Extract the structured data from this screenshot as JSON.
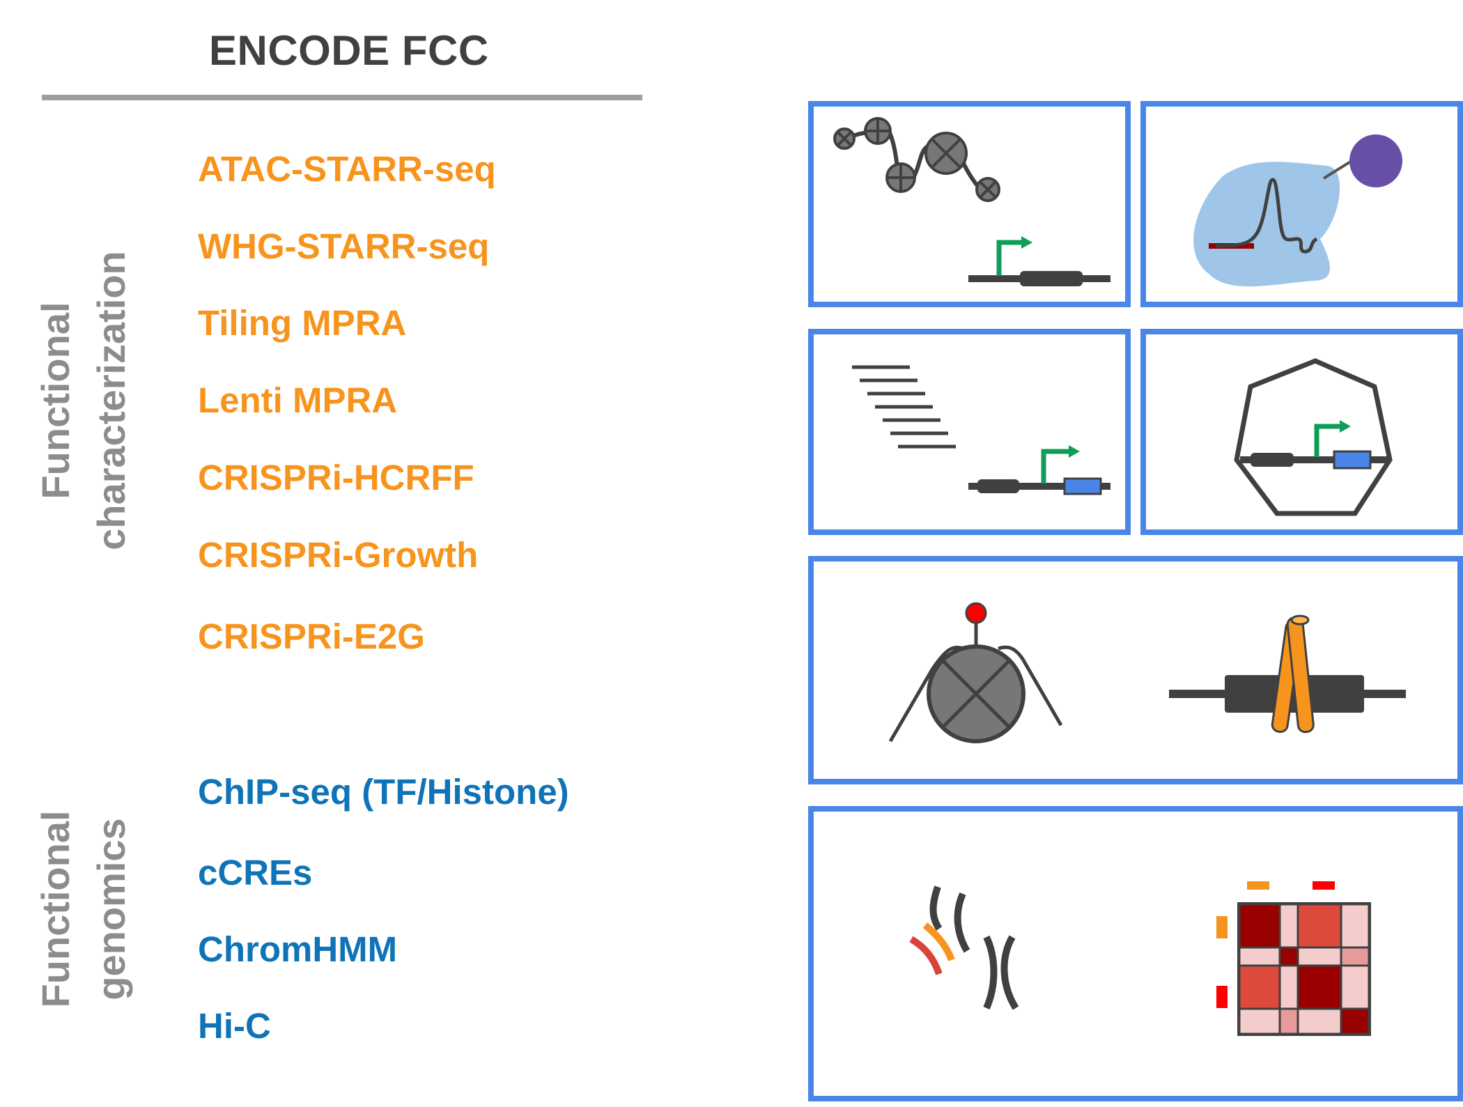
{
  "header": {
    "title": "ENCODE FCC"
  },
  "functional_characterization": {
    "label_line1": "Functional",
    "label_line2": "characterization",
    "color": "#F7941D",
    "assays": [
      "ATAC-STARR-seq",
      "WHG-STARR-seq",
      "Tiling MPRA",
      "Lenti MPRA",
      "CRISPRi-HCRFF",
      "CRISPRi-Growth",
      "CRISPRi-E2G"
    ]
  },
  "functional_genomics": {
    "label_line1": "Functional",
    "label_line2": "genomics",
    "color": "#0F73B8",
    "assays": [
      "ChIP-seq (TF/Histone)",
      "cCREs",
      "ChromHMM",
      "Hi-C"
    ]
  },
  "colors": {
    "panel_border": "#4A86E8",
    "ink": "#404040",
    "green_arrow": "#0F9D58",
    "blue_box": "#4A86E8",
    "purple": "#674EA7",
    "light_blue": "#9FC5E8",
    "orange": "#F7941D",
    "red": "#FF0000",
    "dark_red": "#990000"
  },
  "icons": [
    "nucleosome-chromatin-icon",
    "peak-signal-icon",
    "tiling-fragments-icon",
    "cell-reporter-icon",
    "crispr-nucleosome-icon",
    "dcas9-dna-icon",
    "chromatin-loops-icon",
    "hic-contact-matrix-icon"
  ]
}
